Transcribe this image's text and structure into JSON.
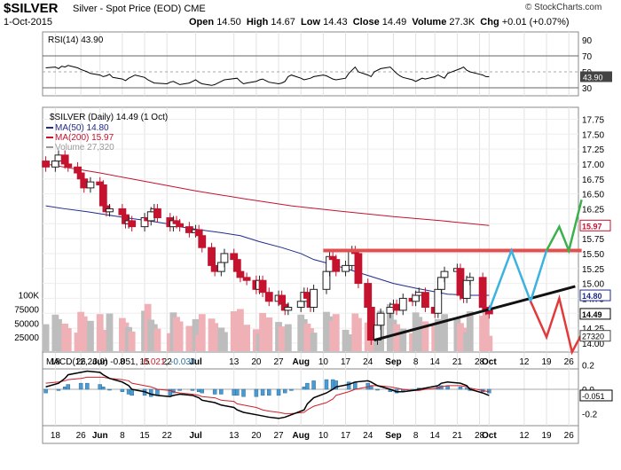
{
  "header": {
    "symbol": "$SILVER",
    "description": "Silver - Spot Price (EOD)",
    "exchange": "CME",
    "date": "1-Oct-2015",
    "open_label": "Open",
    "open": "14.50",
    "high_label": "High",
    "high": "14.67",
    "low_label": "Low",
    "low": "14.43",
    "close_label": "Close",
    "close": "14.49",
    "volume_label": "Volume",
    "volume": "27.3K",
    "chg_label": "Chg",
    "chg": "+0.01 (+0.07%)",
    "copyright": "© StockCharts.com"
  },
  "chart_data": [
    {
      "panel": "rsi",
      "type": "line",
      "title": "RSI(14) 43.90",
      "ylim": [
        20,
        100
      ],
      "yticks": [
        90,
        70,
        50,
        30
      ],
      "reference_lines": [
        70,
        30
      ],
      "last_value": 43.9,
      "last_label": "43.90",
      "values": [
        55,
        56,
        54,
        57,
        56,
        58,
        55,
        53,
        50,
        48,
        46,
        44,
        45,
        47,
        43,
        41,
        39,
        42,
        44,
        46,
        43,
        40,
        38,
        36,
        35,
        37,
        38,
        36,
        34,
        36,
        38,
        40,
        37,
        35,
        33,
        34,
        36,
        38,
        40,
        42,
        38,
        35,
        36,
        38,
        40,
        41,
        39,
        37,
        35,
        36,
        38,
        44,
        46,
        42,
        40,
        42,
        44,
        46,
        45,
        43,
        41,
        40,
        42,
        48,
        52,
        56,
        50,
        46,
        44,
        50,
        54,
        56,
        52,
        48,
        45,
        43,
        40,
        38,
        40,
        42,
        41,
        44,
        46,
        44,
        42,
        48,
        54,
        56,
        52,
        50,
        47,
        46,
        44,
        43.9
      ],
      "line_color": "#000000"
    },
    {
      "panel": "price",
      "type": "candlestick",
      "title": "$SILVER (Daily) 14.49 (1 Oct)",
      "legend": [
        {
          "name": "MA(50) 14.80",
          "color": "#1f2a8c"
        },
        {
          "name": "MA(200) 15.97",
          "color": "#c4122f"
        },
        {
          "name": "Volume 27,320",
          "color": "#999999"
        }
      ],
      "ylim": [
        13.85,
        17.95
      ],
      "yticks": [
        17.75,
        17.5,
        17.25,
        17.0,
        16.75,
        16.5,
        16.25,
        16.0,
        15.75,
        15.5,
        15.25,
        15.0,
        14.75,
        14.5,
        14.25,
        14.0
      ],
      "volume_ticks": [
        {
          "value": 100000,
          "label": "100K"
        },
        {
          "value": 75000,
          "label": "75000"
        },
        {
          "value": 50000,
          "label": "50000"
        },
        {
          "value": 25000,
          "label": "25000"
        }
      ],
      "x_start": "2015-05-14",
      "x_end": "2015-10-29",
      "xticks": [
        {
          "date": "2015-05-18",
          "label": "18"
        },
        {
          "date": "2015-05-26",
          "label": "26"
        },
        {
          "date": "2015-06-01",
          "label": "Jun",
          "bold": true
        },
        {
          "date": "2015-06-08",
          "label": "8"
        },
        {
          "date": "2015-06-15",
          "label": "15"
        },
        {
          "date": "2015-06-22",
          "label": "22"
        },
        {
          "date": "2015-07-01",
          "label": "Jul",
          "bold": true
        },
        {
          "date": "2015-07-13",
          "label": "13"
        },
        {
          "date": "2015-07-20",
          "label": "20"
        },
        {
          "date": "2015-07-27",
          "label": "27"
        },
        {
          "date": "2015-08-03",
          "label": "Aug",
          "bold": true
        },
        {
          "date": "2015-08-10",
          "label": "10"
        },
        {
          "date": "2015-08-17",
          "label": "17"
        },
        {
          "date": "2015-08-24",
          "label": "24"
        },
        {
          "date": "2015-09-01",
          "label": "Sep",
          "bold": true
        },
        {
          "date": "2015-09-08",
          "label": "8"
        },
        {
          "date": "2015-09-14",
          "label": "14"
        },
        {
          "date": "2015-09-21",
          "label": "21"
        },
        {
          "date": "2015-09-28",
          "label": "28"
        },
        {
          "date": "2015-10-01",
          "label": "Oct",
          "bold": true
        },
        {
          "date": "2015-10-12",
          "label": "12"
        },
        {
          "date": "2015-10-19",
          "label": "19"
        },
        {
          "date": "2015-10-26",
          "label": "26"
        }
      ],
      "price_labels": [
        {
          "value": 15.97,
          "label": "15.97",
          "color": "#c4122f"
        },
        {
          "value": 14.8,
          "label": "14.80",
          "color": "#1f2a8c"
        },
        {
          "value": 14.49,
          "label": "14.49",
          "color": "#000000"
        }
      ],
      "volume_badge": {
        "value": 27320,
        "label": "27320"
      },
      "closes": [
        16.95,
        17.05,
        17.15,
        17.0,
        16.95,
        16.85,
        16.75,
        16.6,
        16.7,
        16.65,
        16.3,
        16.2,
        16.25,
        16.15,
        16.0,
        16.05,
        15.95,
        16.1,
        16.05,
        16.2,
        16.25,
        16.1,
        15.95,
        16.05,
        16.0,
        15.95,
        15.85,
        15.9,
        15.8,
        15.6,
        15.3,
        15.2,
        15.35,
        15.5,
        15.4,
        15.2,
        15.1,
        15.05,
        14.9,
        15.05,
        14.85,
        14.7,
        14.8,
        14.65,
        14.55,
        14.6,
        14.7,
        14.85,
        14.75,
        14.6,
        14.9,
        15.2,
        15.45,
        15.4,
        15.2,
        15.3,
        15.55,
        15.5,
        15.0,
        14.6,
        14.05,
        14.3,
        14.5,
        14.6,
        14.65,
        14.55,
        14.75,
        14.7,
        14.8,
        14.85,
        14.6,
        14.5,
        14.9,
        15.1,
        15.2,
        15.25,
        14.8,
        14.75,
        15.05,
        15.1,
        14.6,
        14.55,
        14.49
      ],
      "ma50": [
        16.3,
        16.25,
        16.2,
        16.15,
        16.1,
        16.05,
        16.0,
        15.95,
        15.9,
        15.85,
        15.8,
        15.7,
        15.6,
        15.5,
        15.4,
        15.3,
        15.2,
        15.1,
        15.0,
        14.92,
        14.86,
        14.82,
        14.8,
        14.8
      ],
      "ma200": [
        17.0,
        16.85,
        16.7,
        16.55,
        16.42,
        16.3,
        16.2,
        16.12,
        16.05,
        15.97
      ],
      "projections": [
        {
          "color": "#3bb3e0",
          "points": [
            [
              "2015-10-01",
              14.55
            ],
            [
              "2015-10-08",
              15.55
            ],
            [
              "2015-10-14",
              14.7
            ],
            [
              "2015-10-19",
              15.55
            ]
          ]
        },
        {
          "color": "#e23a3a",
          "points": [
            [
              "2015-10-14",
              14.7
            ],
            [
              "2015-10-19",
              14.1
            ],
            [
              "2015-10-23",
              14.75
            ],
            [
              "2015-10-27",
              13.85
            ],
            [
              "2015-10-30",
              14.15
            ]
          ]
        },
        {
          "color": "#3cb04a",
          "points": [
            [
              "2015-10-19",
              15.55
            ],
            [
              "2015-10-23",
              15.95
            ],
            [
              "2015-10-26",
              15.55
            ],
            [
              "2015-10-30",
              16.4
            ]
          ]
        }
      ],
      "resistance": {
        "from": "2015-08-10",
        "to": "2015-10-30",
        "value": 15.55,
        "color": "#e05050"
      },
      "support": {
        "from": "2015-08-26",
        "to": "2015-10-28",
        "start": 14.05,
        "end": 14.95,
        "color": "#111111"
      }
    },
    {
      "panel": "macd",
      "type": "line",
      "title": "MACD(12,26,9)",
      "macd_value": "-0.051",
      "signal_value": "-0.021",
      "hist_value": "-0.030",
      "ylim": [
        -0.3,
        0.3
      ],
      "yticks": [
        0.2,
        0.0,
        -0.2
      ],
      "last_label": "-0.051",
      "macd": [
        0.02,
        0.05,
        0.09,
        0.12,
        0.14,
        0.15,
        0.14,
        0.12,
        0.09,
        0.06,
        0.03,
        0.0,
        -0.02,
        -0.04,
        -0.05,
        -0.06,
        -0.05,
        -0.04,
        -0.05,
        -0.07,
        -0.09,
        -0.11,
        -0.13,
        -0.15,
        -0.17,
        -0.19,
        -0.21,
        -0.22,
        -0.23,
        -0.24,
        -0.23,
        -0.21,
        -0.17,
        -0.12,
        -0.07,
        -0.03,
        0.0,
        0.02,
        0.04,
        0.06,
        0.07,
        0.06,
        0.03,
        0.0,
        -0.02,
        -0.02,
        -0.01,
        0.0,
        0.01,
        0.03,
        0.05,
        0.06,
        0.05,
        0.03,
        0.0,
        -0.03,
        -0.051
      ],
      "signal": [
        0.05,
        0.06,
        0.07,
        0.08,
        0.09,
        0.1,
        0.1,
        0.1,
        0.09,
        0.08,
        0.07,
        0.05,
        0.03,
        0.02,
        0.0,
        -0.01,
        -0.02,
        -0.03,
        -0.04,
        -0.05,
        -0.06,
        -0.07,
        -0.09,
        -0.1,
        -0.12,
        -0.13,
        -0.15,
        -0.17,
        -0.18,
        -0.19,
        -0.2,
        -0.2,
        -0.19,
        -0.17,
        -0.14,
        -0.11,
        -0.08,
        -0.05,
        -0.02,
        0.0,
        0.02,
        0.03,
        0.03,
        0.02,
        0.01,
        0.0,
        -0.01,
        -0.01,
        0.0,
        0.01,
        0.02,
        0.03,
        0.03,
        0.02,
        0.01,
        -0.01,
        -0.021
      ]
    }
  ]
}
